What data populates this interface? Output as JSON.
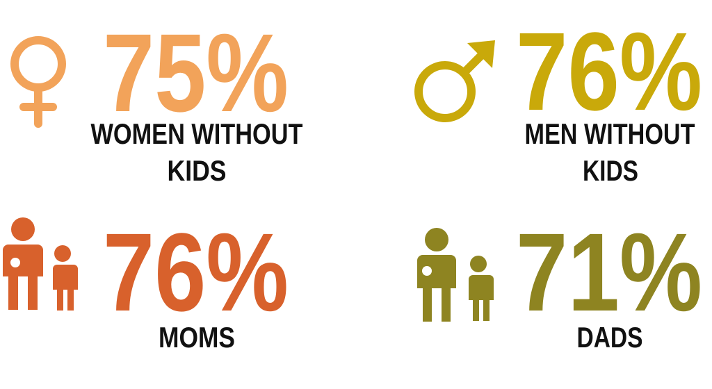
{
  "items": [
    {
      "value": "75%",
      "label_lines": [
        "WOMEN WITHOUT",
        "KIDS"
      ]
    },
    {
      "value": "76%",
      "label_lines": [
        "MEN WITHOUT",
        "KIDS"
      ]
    },
    {
      "value": "76%",
      "label_lines": [
        "MOMS"
      ]
    },
    {
      "value": "71%",
      "label_lines": [
        "DADS"
      ]
    }
  ]
}
